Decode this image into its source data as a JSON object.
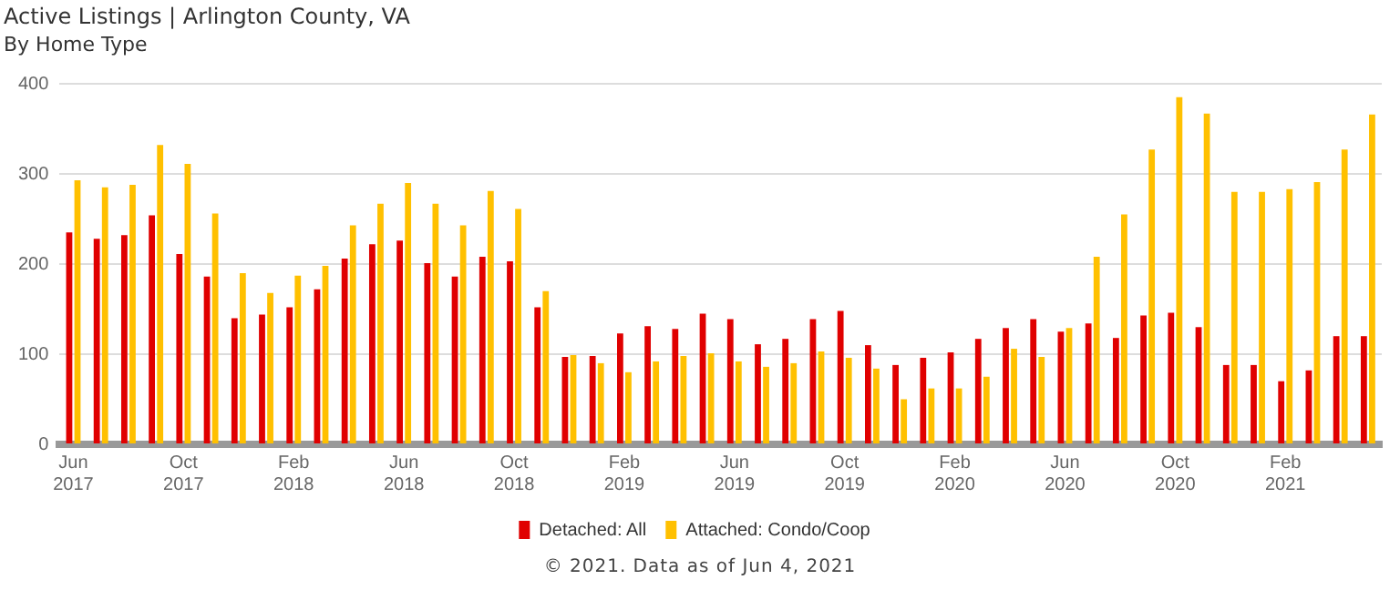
{
  "chart_data": {
    "type": "bar",
    "title": "Active Listings | Arlington County, VA",
    "subtitle": "By Home Type",
    "categories": [
      "Jun 2017",
      null,
      null,
      null,
      "Oct 2017",
      null,
      null,
      null,
      "Feb 2018",
      null,
      null,
      null,
      "Jun 2018",
      null,
      null,
      null,
      "Oct 2018",
      null,
      null,
      null,
      "Feb 2019",
      null,
      null,
      null,
      "Jun 2019",
      null,
      null,
      null,
      "Oct 2019",
      null,
      null,
      null,
      "Feb 2020",
      null,
      null,
      null,
      "Jun 2020",
      null,
      null,
      null,
      "Oct 2020",
      null,
      null,
      null,
      "Feb 2021",
      null,
      null,
      null
    ],
    "series": [
      {
        "name": "Detached: All",
        "color": "#e00000",
        "values": [
          235,
          228,
          232,
          254,
          211,
          186,
          140,
          144,
          152,
          172,
          206,
          222,
          226,
          201,
          186,
          208,
          203,
          152,
          97,
          98,
          123,
          131,
          128,
          145,
          139,
          111,
          117,
          139,
          148,
          110,
          88,
          96,
          102,
          117,
          129,
          139,
          125,
          134,
          118,
          143,
          146,
          130,
          88,
          88,
          70,
          82,
          120,
          120
        ]
      },
      {
        "name": "Attached: Condo/Coop",
        "color": "#ffc000",
        "values": [
          293,
          285,
          288,
          332,
          311,
          256,
          190,
          168,
          187,
          198,
          243,
          267,
          290,
          267,
          243,
          281,
          261,
          170,
          99,
          90,
          80,
          92,
          98,
          101,
          92,
          86,
          90,
          103,
          96,
          84,
          50,
          62,
          62,
          75,
          106,
          97,
          129,
          208,
          255,
          327,
          385,
          367,
          280,
          280,
          283,
          291,
          327,
          366
        ]
      }
    ],
    "ylim": [
      0,
      400
    ],
    "yticks": [
      0,
      100,
      200,
      300,
      400
    ],
    "grid": "y",
    "legend": "bottom",
    "annotations": [
      "© 2021. Data as of Jun 4, 2021"
    ]
  }
}
